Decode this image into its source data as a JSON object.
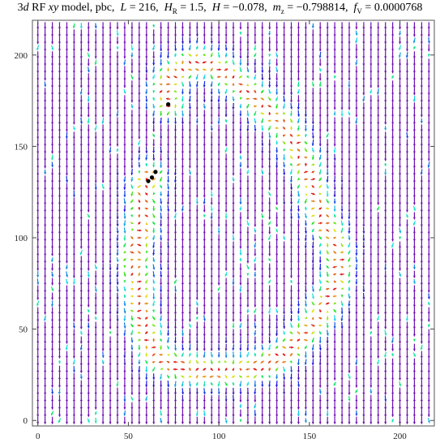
{
  "title": {
    "dim": "3",
    "dim_suffix": "d",
    "model_pre": " RF ",
    "model_var": "xy",
    "model_post": " model, pbc,",
    "L_sym": "L",
    "L_val": "= 216,",
    "HR_sym": "H",
    "HR_sub": "R",
    "HR_val": "= 1.5,",
    "H_sym": "H",
    "H_val": "= −0.078,",
    "mz_sym": "m",
    "mz_sub": "z",
    "mz_val": "= −0.798814,",
    "fV_sym": "f",
    "fV_sub": "V",
    "fV_val": "= 0.0000768"
  },
  "chart_data": {
    "type": "vector field",
    "x_ticks": [
      "0",
      "50",
      "100",
      "150",
      "200"
    ],
    "y_ticks": [
      "0",
      "50",
      "100",
      "150",
      "200"
    ],
    "xlim": [
      -3,
      219
    ],
    "ylim": [
      -3,
      219
    ],
    "grid": false,
    "colormap": "rainbow (purple = spin down, red = in-plane)",
    "background_color": "#5a1ea6",
    "vortex_line": [
      [
        72,
        173
      ],
      [
        70,
        180
      ],
      [
        73,
        187
      ],
      [
        79,
        193
      ],
      [
        87,
        196
      ],
      [
        95,
        195
      ],
      [
        103,
        190
      ],
      [
        111,
        184
      ],
      [
        118,
        178
      ],
      [
        125,
        172
      ],
      [
        130,
        166
      ],
      [
        136,
        161
      ],
      [
        140,
        155
      ],
      [
        143,
        148
      ],
      [
        147,
        141
      ],
      [
        150,
        133
      ],
      [
        152,
        125
      ],
      [
        155,
        117
      ],
      [
        158,
        109
      ],
      [
        162,
        101
      ],
      [
        165,
        93
      ],
      [
        167,
        85
      ],
      [
        165,
        77
      ],
      [
        162,
        69
      ],
      [
        157,
        61
      ],
      [
        152,
        53
      ],
      [
        146,
        46
      ],
      [
        140,
        40
      ],
      [
        134,
        35
      ],
      [
        127,
        31
      ],
      [
        120,
        29
      ],
      [
        112,
        28
      ],
      [
        104,
        27
      ],
      [
        96,
        27
      ],
      [
        88,
        28
      ],
      [
        80,
        29
      ],
      [
        72,
        31
      ],
      [
        66,
        35
      ],
      [
        62,
        42
      ],
      [
        59,
        50
      ],
      [
        57,
        58
      ],
      [
        56,
        66
      ],
      [
        55,
        74
      ],
      [
        54,
        82
      ],
      [
        54,
        90
      ],
      [
        55,
        98
      ],
      [
        57,
        106
      ],
      [
        58,
        114
      ],
      [
        58,
        122
      ],
      [
        59,
        128
      ],
      [
        62,
        133
      ]
    ],
    "vortex_points": [
      [
        72,
        173
      ],
      [
        63,
        133
      ],
      [
        61,
        131
      ],
      [
        65,
        136
      ]
    ]
  }
}
